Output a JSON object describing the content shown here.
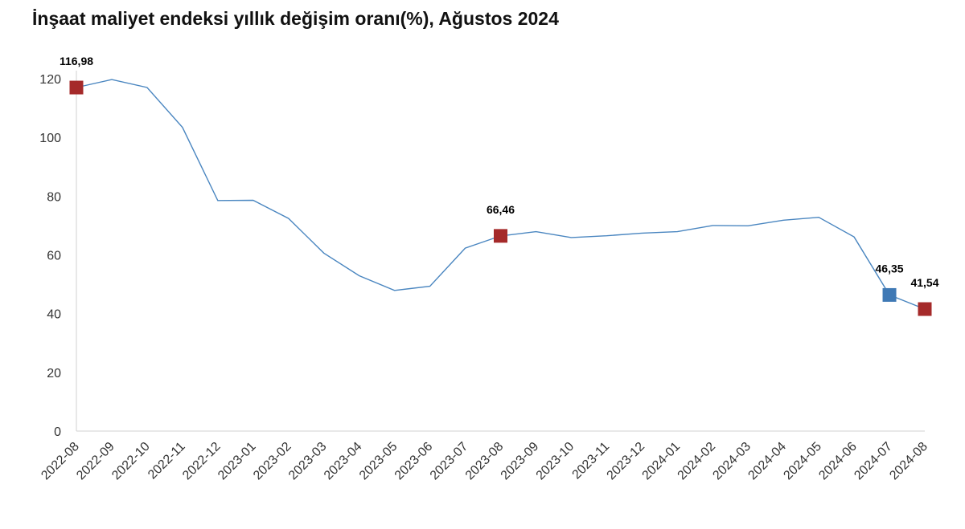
{
  "chart_data": {
    "type": "line",
    "title": "İnşaat maliyet endeksi yıllık değişim oranı(%), Ağustos 2024",
    "xlabel": "",
    "ylabel": "",
    "ylim": [
      0,
      120
    ],
    "yticks": [
      0,
      20,
      40,
      60,
      80,
      100,
      120
    ],
    "grid": false,
    "categories": [
      "2022-08",
      "2022-09",
      "2022-10",
      "2022-11",
      "2022-12",
      "2023-01",
      "2023-02",
      "2023-03",
      "2023-04",
      "2023-05",
      "2023-06",
      "2023-07",
      "2023-08",
      "2023-09",
      "2023-10",
      "2023-11",
      "2023-12",
      "2024-01",
      "2024-02",
      "2024-03",
      "2024-04",
      "2024-05",
      "2024-06",
      "2024-07",
      "2024-08"
    ],
    "values": [
      116.98,
      119.7,
      117.0,
      103.4,
      78.5,
      78.6,
      72.4,
      60.6,
      52.9,
      47.9,
      49.3,
      62.3,
      66.46,
      67.9,
      65.9,
      66.5,
      67.4,
      67.9,
      70.0,
      69.9,
      71.8,
      72.8,
      66.1,
      46.35,
      41.54
    ],
    "line_color": "#4a86c0",
    "highlights": [
      {
        "index": 0,
        "label": "116,98",
        "color": "#a52a2a"
      },
      {
        "index": 12,
        "label": "66,46",
        "color": "#a52a2a"
      },
      {
        "index": 23,
        "label": "46,35",
        "color": "#3f79b5"
      },
      {
        "index": 24,
        "label": "41,54",
        "color": "#a52a2a"
      }
    ]
  }
}
